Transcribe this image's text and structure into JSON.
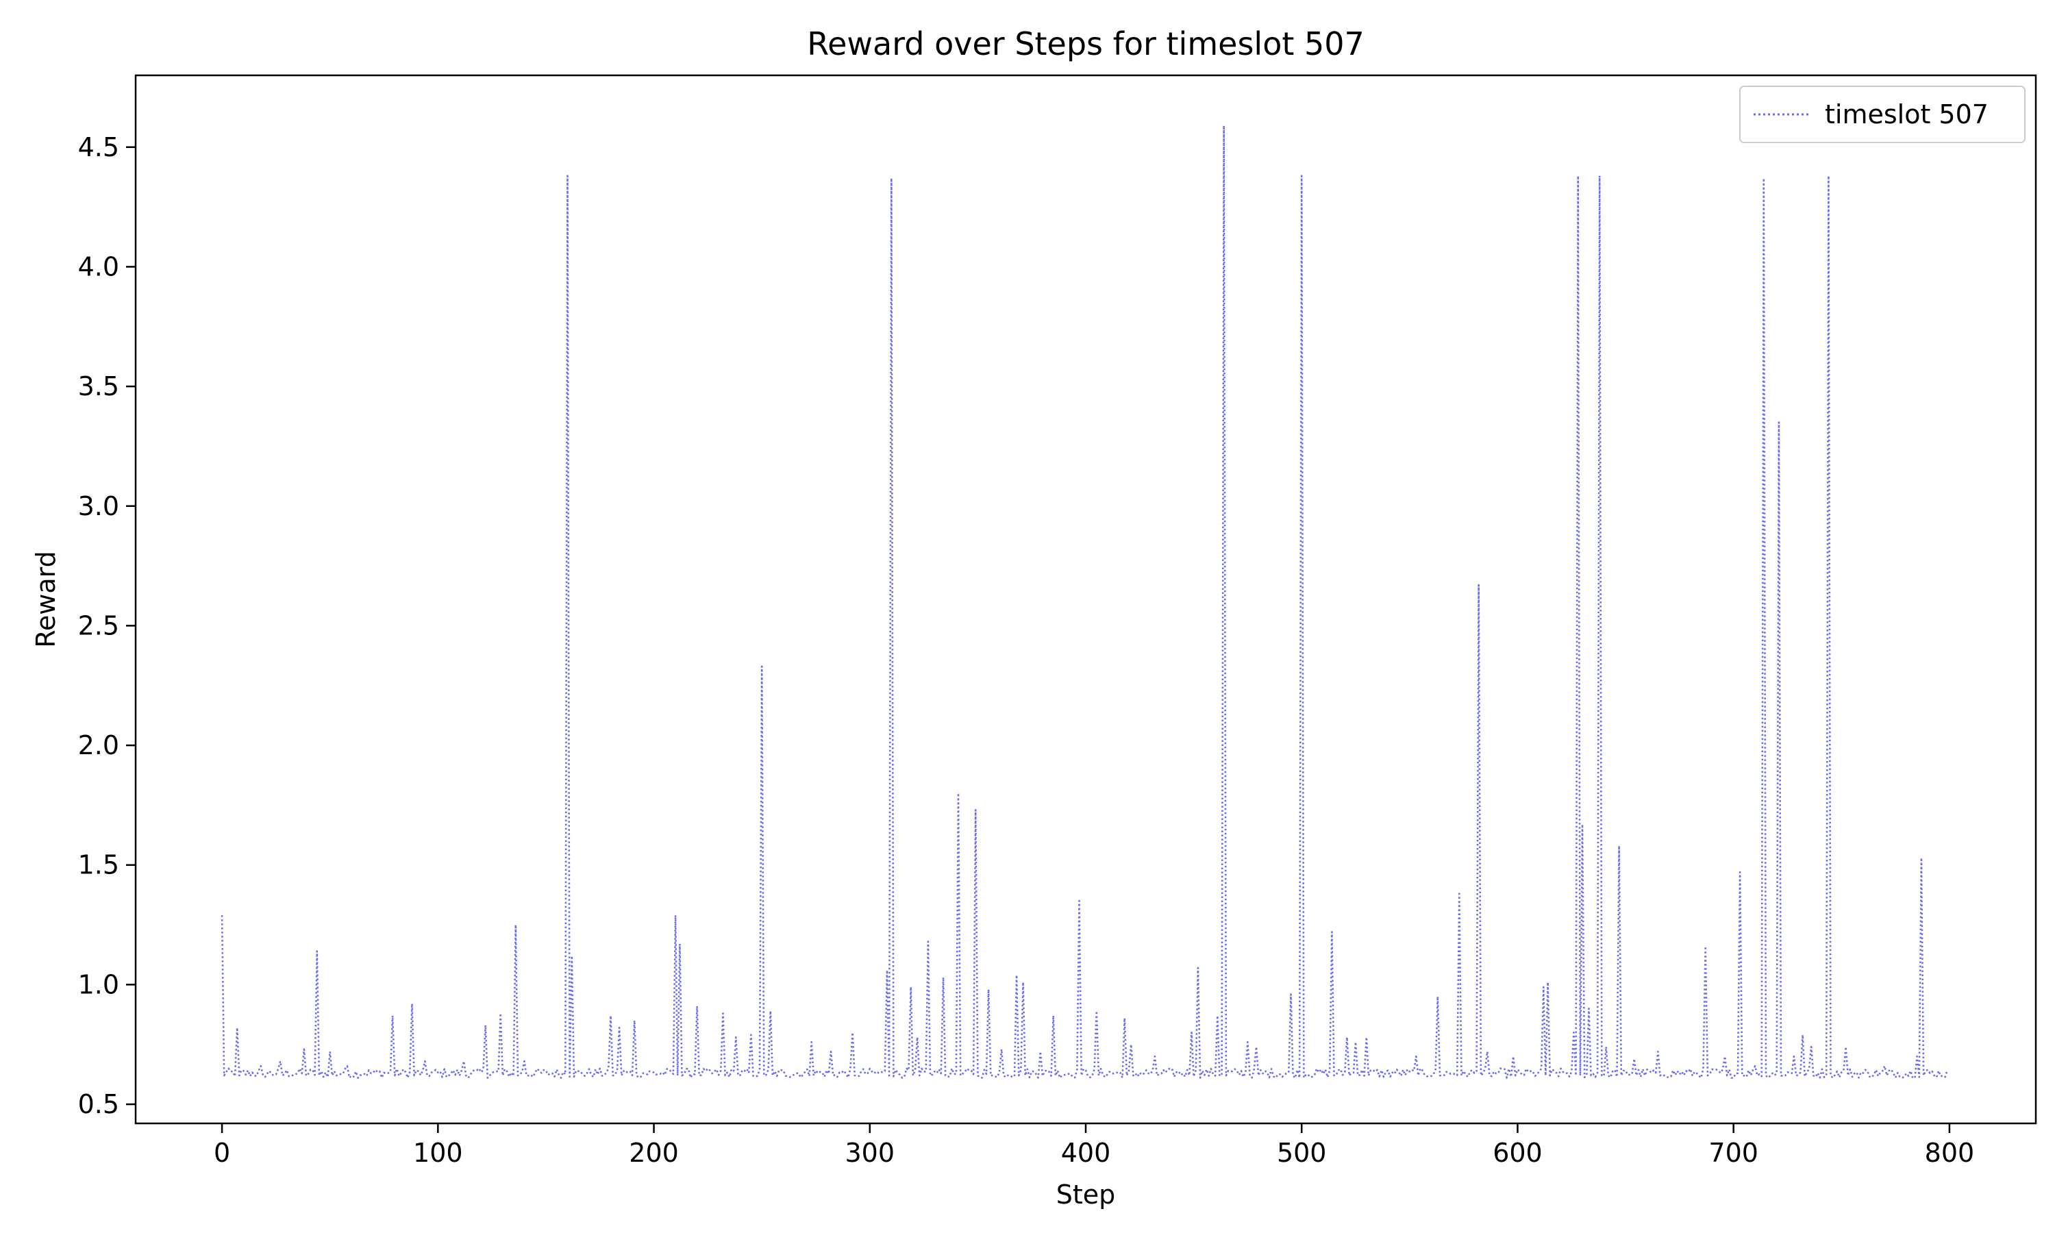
{
  "chart_data": {
    "type": "line",
    "title": "Reward over Steps for timeslot 507",
    "xlabel": "Step",
    "ylabel": "Reward",
    "xlim": [
      -40,
      840
    ],
    "ylim": [
      0.42,
      4.8
    ],
    "xticks": [
      0,
      100,
      200,
      300,
      400,
      500,
      600,
      700,
      800
    ],
    "yticks": [
      0.5,
      1.0,
      1.5,
      2.0,
      2.5,
      3.0,
      3.5,
      4.0,
      4.5
    ],
    "grid": false,
    "legend_position": "top-right",
    "series": [
      {
        "name": "timeslot 507",
        "color": "#6b6bf0",
        "line_style": "dotted",
        "baseline": 0.63,
        "n_steps": 800,
        "peaks": [
          [
            0,
            1.29
          ],
          [
            7,
            0.82
          ],
          [
            18,
            0.66
          ],
          [
            27,
            0.68
          ],
          [
            38,
            0.73
          ],
          [
            44,
            1.14
          ],
          [
            50,
            0.72
          ],
          [
            58,
            0.66
          ],
          [
            79,
            0.87
          ],
          [
            88,
            0.92
          ],
          [
            94,
            0.68
          ],
          [
            112,
            0.68
          ],
          [
            122,
            0.83
          ],
          [
            129,
            0.88
          ],
          [
            136,
            1.25
          ],
          [
            140,
            0.68
          ],
          [
            160,
            4.38
          ],
          [
            162,
            1.12
          ],
          [
            180,
            0.87
          ],
          [
            184,
            0.82
          ],
          [
            191,
            0.85
          ],
          [
            210,
            1.29
          ],
          [
            212,
            1.17
          ],
          [
            220,
            0.91
          ],
          [
            232,
            0.88
          ],
          [
            238,
            0.78
          ],
          [
            245,
            0.79
          ],
          [
            250,
            2.33
          ],
          [
            254,
            0.89
          ],
          [
            273,
            0.76
          ],
          [
            282,
            0.72
          ],
          [
            292,
            0.8
          ],
          [
            308,
            1.06
          ],
          [
            310,
            4.37
          ],
          [
            319,
            0.99
          ],
          [
            322,
            0.78
          ],
          [
            327,
            1.18
          ],
          [
            334,
            1.03
          ],
          [
            341,
            1.8
          ],
          [
            349,
            1.73
          ],
          [
            355,
            0.98
          ],
          [
            361,
            0.73
          ],
          [
            368,
            1.04
          ],
          [
            371,
            1.01
          ],
          [
            379,
            0.72
          ],
          [
            385,
            0.87
          ],
          [
            397,
            1.35
          ],
          [
            405,
            0.89
          ],
          [
            418,
            0.86
          ],
          [
            421,
            0.75
          ],
          [
            432,
            0.7
          ],
          [
            449,
            0.8
          ],
          [
            452,
            1.07
          ],
          [
            461,
            0.87
          ],
          [
            464,
            4.59
          ],
          [
            475,
            0.76
          ],
          [
            479,
            0.74
          ],
          [
            495,
            0.96
          ],
          [
            500,
            4.38
          ],
          [
            514,
            1.22
          ],
          [
            521,
            0.78
          ],
          [
            525,
            0.76
          ],
          [
            530,
            0.78
          ],
          [
            553,
            0.7
          ],
          [
            563,
            0.95
          ],
          [
            573,
            1.38
          ],
          [
            582,
            2.67
          ],
          [
            586,
            0.72
          ],
          [
            598,
            0.7
          ],
          [
            612,
            0.99
          ],
          [
            614,
            1.01
          ],
          [
            626,
            0.8
          ],
          [
            628,
            4.38
          ],
          [
            630,
            1.67
          ],
          [
            633,
            0.9
          ],
          [
            638,
            4.38
          ],
          [
            641,
            0.74
          ],
          [
            647,
            1.58
          ],
          [
            654,
            0.69
          ],
          [
            665,
            0.72
          ],
          [
            687,
            1.16
          ],
          [
            696,
            0.7
          ],
          [
            703,
            1.47
          ],
          [
            710,
            0.66
          ],
          [
            714,
            4.37
          ],
          [
            721,
            3.35
          ],
          [
            728,
            0.7
          ],
          [
            732,
            0.79
          ],
          [
            736,
            0.74
          ],
          [
            744,
            4.38
          ],
          [
            752,
            0.74
          ],
          [
            770,
            0.66
          ],
          [
            785,
            0.7
          ],
          [
            787,
            1.53
          ],
          [
            797,
            0.62
          ]
        ]
      }
    ]
  }
}
